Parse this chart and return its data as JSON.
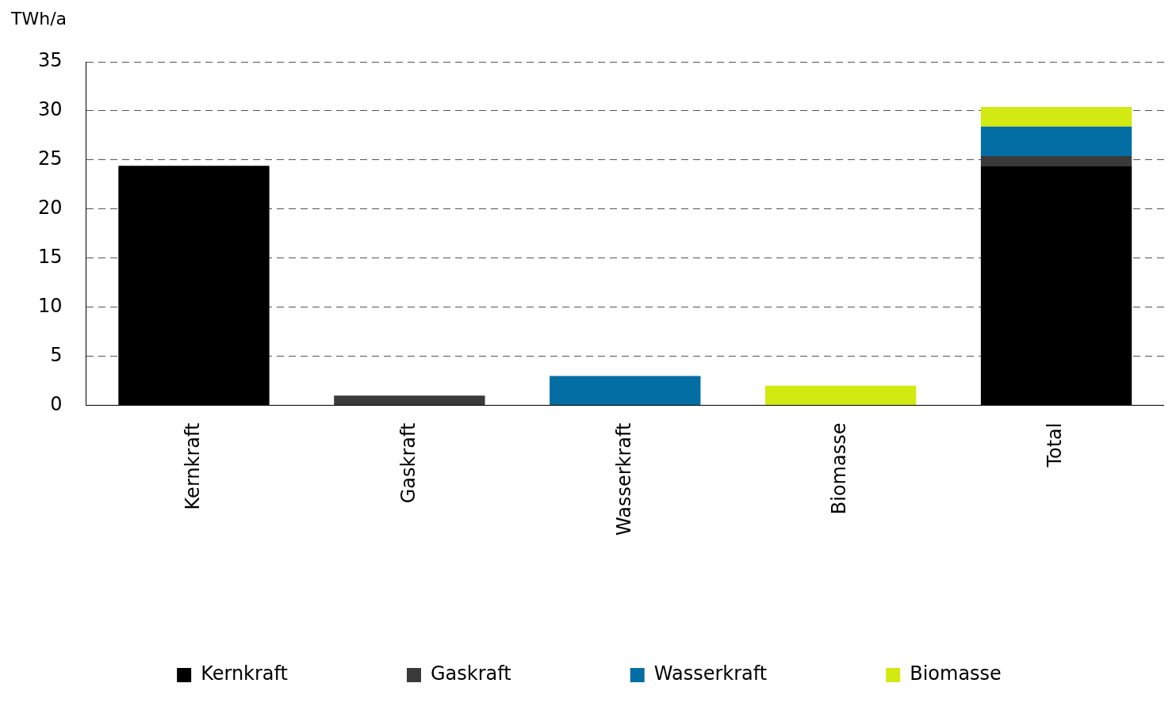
{
  "chart_data": {
    "type": "bar",
    "ylabel": "TWh/a",
    "categories": [
      "Kernkraft",
      "Gaskraft",
      "Wasserkraft",
      "Biomasse",
      "Total"
    ],
    "stacked": true,
    "series": [
      {
        "name": "Kernkraft",
        "color": "#000000",
        "values": [
          24.4,
          null,
          null,
          null,
          24.4
        ]
      },
      {
        "name": "Gaskraft",
        "color": "#3a3a3a",
        "values": [
          null,
          1.0,
          null,
          null,
          1.0
        ]
      },
      {
        "name": "Wasserkraft",
        "color": "#026ea3",
        "values": [
          null,
          null,
          3.0,
          null,
          3.0
        ]
      },
      {
        "name": "Biomasse",
        "color": "#d2e912",
        "values": [
          null,
          null,
          null,
          2.0,
          2.0
        ]
      }
    ],
    "ylim": [
      0,
      35
    ],
    "yticks": [
      0,
      5,
      10,
      15,
      20,
      25,
      30,
      35
    ],
    "grid": "y",
    "legend": "bottom"
  }
}
